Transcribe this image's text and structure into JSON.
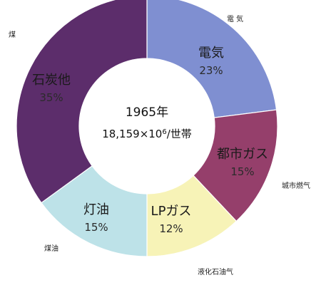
{
  "chart_data": {
    "type": "pie",
    "style": "donut",
    "categories": [
      "電気",
      "都市ガス",
      "LPガス",
      "灯油",
      "石炭他"
    ],
    "values": [
      23,
      15,
      12,
      15,
      35
    ],
    "unit": "%",
    "slices": [
      {
        "name": "電気",
        "value_label": "23%",
        "outer_label": "電 気",
        "color": "#7f8fd1"
      },
      {
        "name": "都市ガス",
        "value_label": "15%",
        "outer_label": "城市燃气",
        "color": "#953f6b"
      },
      {
        "name": "LPガス",
        "value_label": "12%",
        "outer_label": "液化石油气",
        "color": "#f7f3b7"
      },
      {
        "name": "灯油",
        "value_label": "15%",
        "outer_label": "煤油",
        "color": "#bde2e8"
      },
      {
        "name": "石炭他",
        "value_label": "35%",
        "outer_label": "煤",
        "color": "#5c2d6b"
      }
    ],
    "center_year": "1965年",
    "center_total_prefix": "18,159×10",
    "center_total_exp": "6",
    "center_total_suffix": "/世帯"
  }
}
